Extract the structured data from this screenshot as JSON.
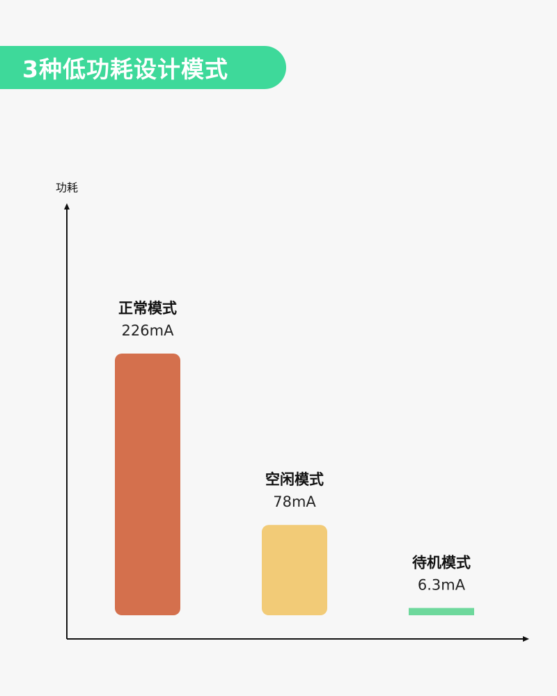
{
  "title": "3种低功耗设计模式",
  "chart_data": {
    "type": "bar",
    "ylabel": "功耗",
    "xlabel": "",
    "categories": [
      "正常模式",
      "空闲模式",
      "待机模式"
    ],
    "values": [
      226,
      78,
      6.3
    ],
    "value_labels": [
      "226mA",
      "78mA",
      "6.3mA"
    ],
    "unit": "mA",
    "colors": [
      "#d4704d",
      "#f2cb77",
      "#6ed89c"
    ],
    "grid": false,
    "legend": "none"
  }
}
